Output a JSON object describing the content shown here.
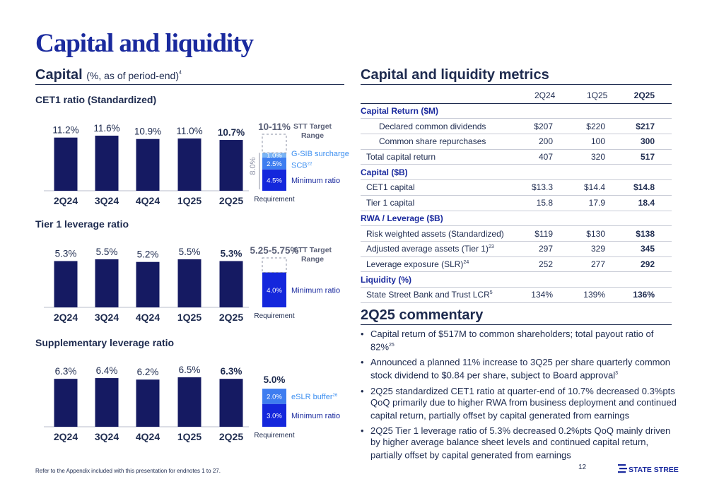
{
  "title": "Capital and liquidity",
  "capital_section": {
    "heading": "Capital",
    "heading_note": "(%, as of period-end)",
    "heading_sup": "4"
  },
  "colors": {
    "bar_dark": "#151a62",
    "bar_highlight": "#1427dc",
    "stack_mid": "#3e7df0",
    "stack_light": "#7ab4f5",
    "gsib_text": "#3b8ef0",
    "title_blue": "#1a2a9e"
  },
  "chart_data": [
    {
      "type": "bar",
      "title": "CET1 ratio (Standardized)",
      "categories": [
        "2Q24",
        "3Q24",
        "4Q24",
        "1Q25",
        "2Q25"
      ],
      "values": [
        11.2,
        11.6,
        10.9,
        11.0,
        10.7
      ],
      "value_labels": [
        "11.2%",
        "11.6%",
        "10.9%",
        "11.0%",
        "10.7%"
      ],
      "requirement": {
        "label": "Requirement",
        "total_label": "8.0%",
        "target_label": "10-11%",
        "target_text": "STT Target Range",
        "stack": [
          {
            "label": "4.5%",
            "value": 4.5,
            "name": "Minimum ratio",
            "sup": ""
          },
          {
            "label": "2.5%",
            "value": 2.5,
            "name": "SCB",
            "sup": "22"
          },
          {
            "label": "1.0%",
            "value": 1.0,
            "name": "G-SIB surcharge",
            "sup": ""
          }
        ]
      }
    },
    {
      "type": "bar",
      "title": "Tier 1 leverage ratio",
      "categories": [
        "2Q24",
        "3Q24",
        "4Q24",
        "1Q25",
        "2Q25"
      ],
      "values": [
        5.3,
        5.5,
        5.2,
        5.5,
        5.3
      ],
      "value_labels": [
        "5.3%",
        "5.5%",
        "5.2%",
        "5.5%",
        "5.3%"
      ],
      "requirement": {
        "label": "Requirement",
        "target_label": "5.25-5.75%",
        "target_text": "STT Target Range",
        "stack": [
          {
            "label": "4.0%",
            "value": 4.0,
            "name": "Minimum ratio",
            "sup": ""
          }
        ]
      }
    },
    {
      "type": "bar",
      "title": "Supplementary leverage ratio",
      "categories": [
        "2Q24",
        "3Q24",
        "4Q24",
        "1Q25",
        "2Q25"
      ],
      "values": [
        6.3,
        6.4,
        6.2,
        6.5,
        6.3
      ],
      "value_labels": [
        "6.3%",
        "6.4%",
        "6.2%",
        "6.5%",
        "6.3%"
      ],
      "requirement": {
        "label": "Requirement",
        "total_label": "5.0%",
        "stack": [
          {
            "label": "3.0%",
            "value": 3.0,
            "name": "Minimum ratio",
            "sup": ""
          },
          {
            "label": "2.0%",
            "value": 2.0,
            "name": "eSLR buffer",
            "sup": "26"
          }
        ]
      }
    }
  ],
  "metrics": {
    "heading": "Capital and liquidity metrics",
    "columns": [
      "2Q24",
      "1Q25",
      "2Q25"
    ],
    "rows": [
      {
        "kind": "section",
        "label": "Capital Return ($M)"
      },
      {
        "kind": "row",
        "indent": true,
        "label": "Declared common dividends",
        "sup": "",
        "values": [
          "$207",
          "$220",
          "$217"
        ]
      },
      {
        "kind": "row",
        "indent": true,
        "label": "Common share repurchases",
        "sup": "",
        "values": [
          "200",
          "100",
          "300"
        ]
      },
      {
        "kind": "row",
        "indent": false,
        "label": "Total capital return",
        "sup": "",
        "values": [
          "407",
          "320",
          "517"
        ]
      },
      {
        "kind": "section",
        "label": "Capital ($B)"
      },
      {
        "kind": "row",
        "indent": false,
        "label": "CET1 capital",
        "sup": "",
        "values": [
          "$13.3",
          "$14.4",
          "$14.8"
        ]
      },
      {
        "kind": "row",
        "indent": false,
        "label": "Tier 1 capital",
        "sup": "",
        "values": [
          "15.8",
          "17.9",
          "18.4"
        ]
      },
      {
        "kind": "section",
        "label": "RWA / Leverage ($B)"
      },
      {
        "kind": "row",
        "indent": false,
        "label": "Risk weighted assets (Standardized)",
        "sup": "",
        "values": [
          "$119",
          "$130",
          "$138"
        ]
      },
      {
        "kind": "row",
        "indent": false,
        "label": "Adjusted average assets (Tier 1)",
        "sup": "23",
        "values": [
          "297",
          "329",
          "345"
        ]
      },
      {
        "kind": "row",
        "indent": false,
        "label": "Leverage exposure (SLR)",
        "sup": "24",
        "values": [
          "252",
          "277",
          "292"
        ]
      },
      {
        "kind": "section",
        "label": "Liquidity (%)"
      },
      {
        "kind": "row",
        "indent": false,
        "label": "State Street Bank and Trust LCR",
        "sup": "5",
        "values": [
          "134%",
          "139%",
          "136%"
        ]
      }
    ]
  },
  "commentary": {
    "heading": "2Q25 commentary",
    "bullets": [
      {
        "text": "Capital return of $517M to common shareholders; total payout ratio of 82%",
        "sup": "25"
      },
      {
        "text": "Announced a planned 11% increase to 3Q25 per share quarterly common stock dividend to $0.84 per share, subject to Board approval",
        "sup": "3"
      },
      {
        "text": "2Q25 standardized CET1 ratio at quarter-end of 10.7% decreased 0.3%pts QoQ primarily due to higher RWA from business deployment and continued capital return, partially offset by capital generated from earnings",
        "sup": ""
      },
      {
        "text": "2Q25 Tier 1 leverage ratio of 5.3% decreased 0.2%pts QoQ mainly driven by higher average balance sheet levels and continued capital return, partially offset by capital generated from earnings",
        "sup": ""
      }
    ]
  },
  "footer": {
    "footnote": "Refer to the Appendix included with this presentation for endnotes 1 to 27.",
    "page_number": "12",
    "logo_text": "STATE STREET"
  }
}
